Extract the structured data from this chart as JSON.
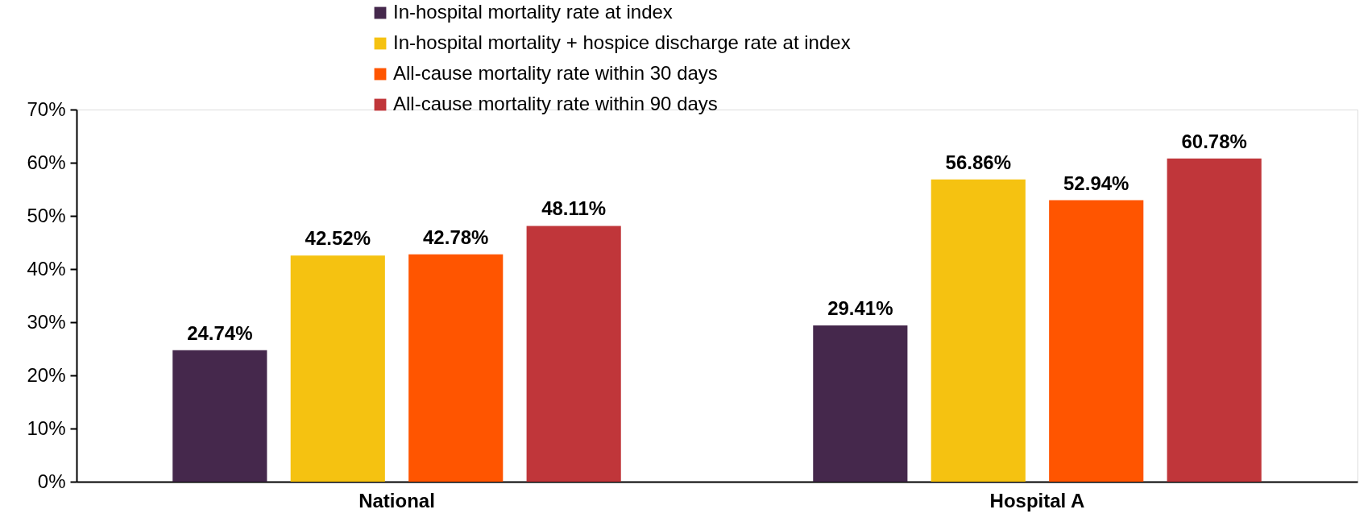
{
  "chart_data": {
    "type": "bar",
    "categories": [
      "National",
      "Hospital A"
    ],
    "series": [
      {
        "name": "In-hospital mortality rate at index",
        "color": "#45284c",
        "values": [
          24.74,
          29.41
        ],
        "value_labels": [
          "24.74%",
          "29.41%"
        ]
      },
      {
        "name": "In-hospital mortality + hospice discharge rate at index",
        "color": "#f5c211",
        "values": [
          42.52,
          56.86
        ],
        "value_labels": [
          "42.52%",
          "56.86%"
        ]
      },
      {
        "name": "All-cause mortality rate within 30 days",
        "color": "#ff5500",
        "values": [
          42.78,
          52.94
        ],
        "value_labels": [
          "42.78%",
          "52.94%"
        ]
      },
      {
        "name": "All-cause mortality rate within 90 days",
        "color": "#c0363a",
        "values": [
          48.11,
          60.78
        ],
        "value_labels": [
          "48.11%",
          "60.78%"
        ]
      }
    ],
    "ylim": [
      0,
      70
    ],
    "yticks": [
      {
        "value": 0,
        "label": "0%"
      },
      {
        "value": 10,
        "label": "10%"
      },
      {
        "value": 20,
        "label": "20%"
      },
      {
        "value": 30,
        "label": "30%"
      },
      {
        "value": 40,
        "label": "40%"
      },
      {
        "value": 50,
        "label": "50%"
      },
      {
        "value": 60,
        "label": "60%"
      },
      {
        "value": 70,
        "label": "70%"
      }
    ],
    "grid": false,
    "legend": "top"
  }
}
